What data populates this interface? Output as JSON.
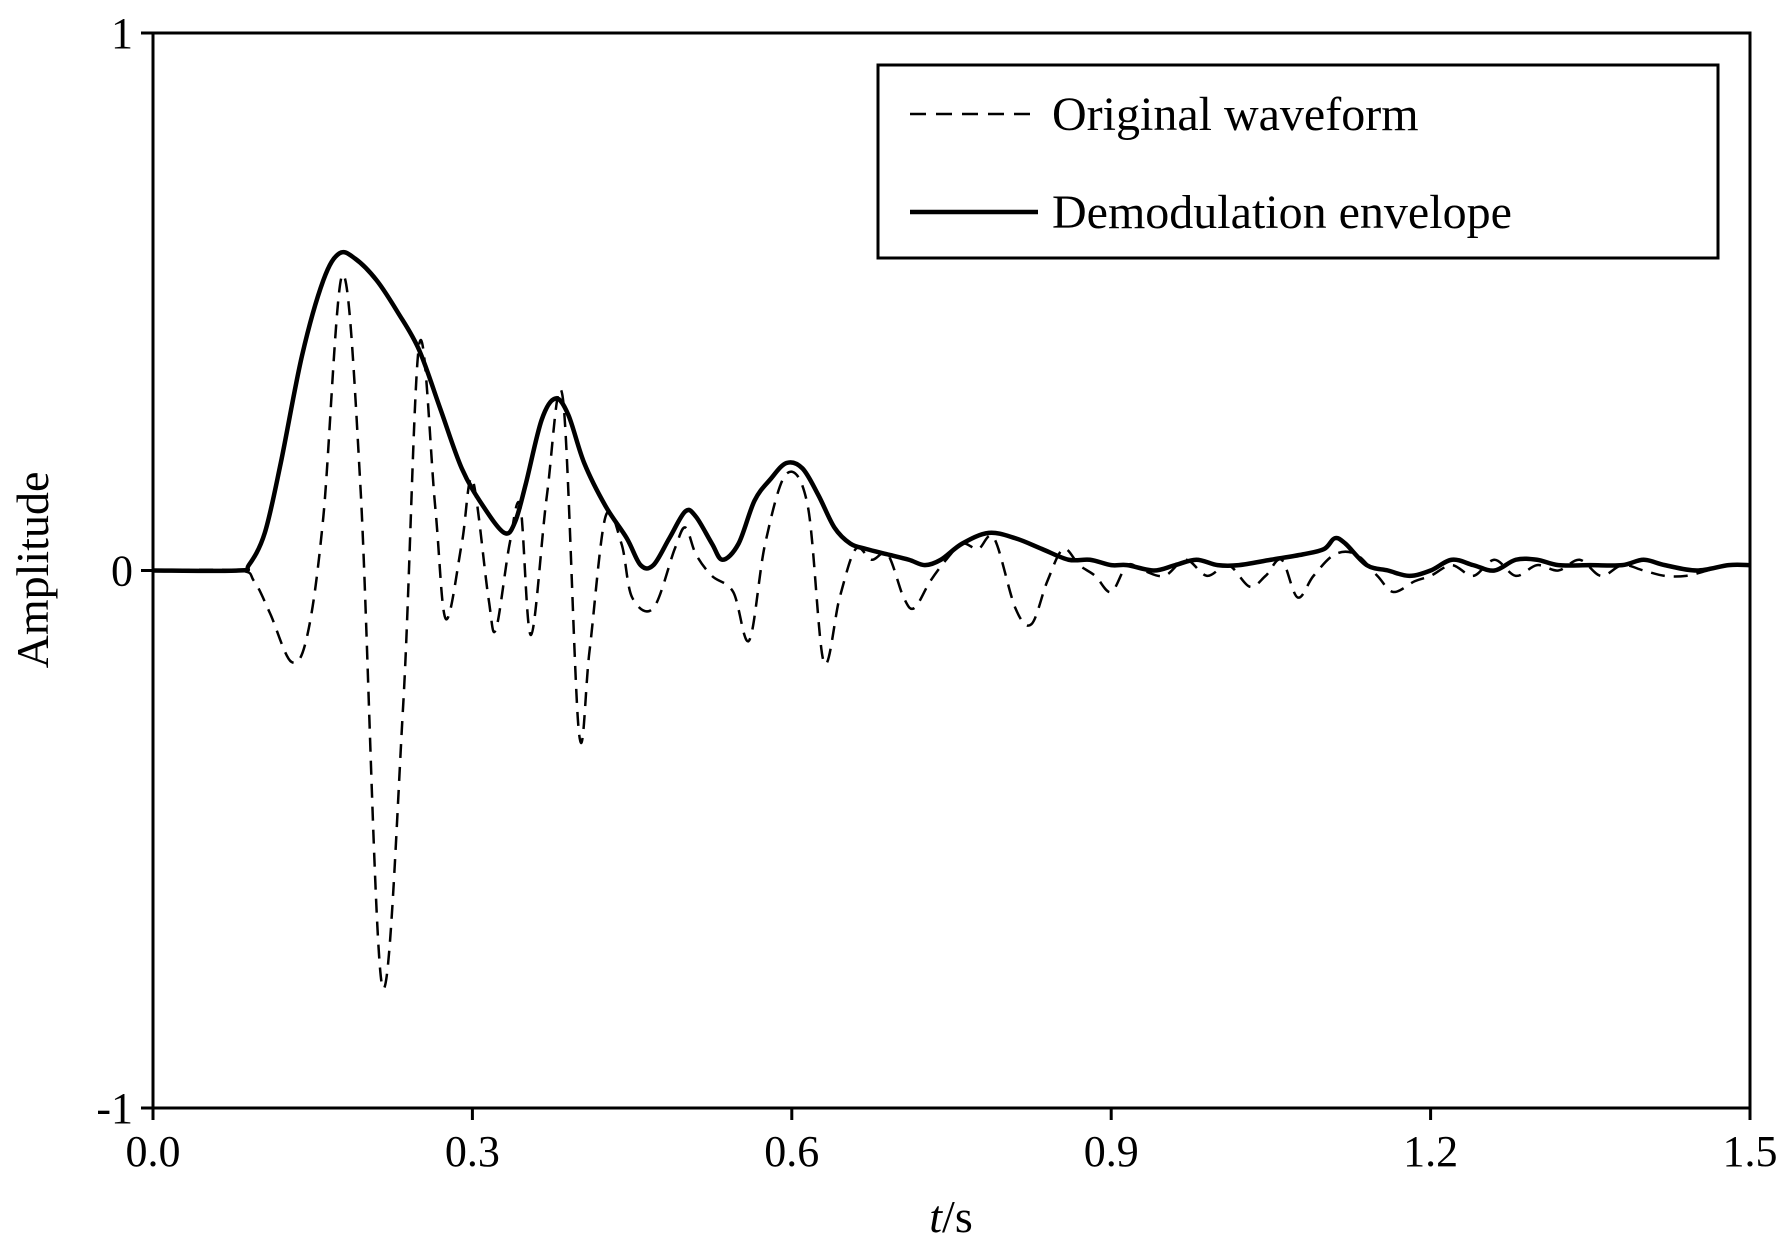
{
  "chart_data": {
    "type": "line",
    "title": "",
    "xlabel_italic": "t",
    "xlabel_unit": "/s",
    "ylabel": "Amplitude",
    "xlim": [
      0.0,
      1.5
    ],
    "ylim": [
      -1,
      1
    ],
    "x_ticks": [
      0.0,
      0.3,
      0.6,
      0.9,
      1.2,
      1.5
    ],
    "x_tick_labels": [
      "0.0",
      "0.3",
      "0.6",
      "0.9",
      "1.2",
      "1.5"
    ],
    "y_ticks": [
      -1,
      0,
      1
    ],
    "y_tick_labels": [
      "-1",
      "0",
      "1"
    ],
    "grid": false,
    "legend_position": "top-right",
    "series": [
      {
        "name": "Original waveform",
        "style": "dashed",
        "color": "#000000",
        "x": [
          0.0,
          0.08,
          0.095,
          0.11,
          0.13,
          0.145,
          0.16,
          0.178,
          0.195,
          0.215,
          0.235,
          0.25,
          0.265,
          0.275,
          0.29,
          0.3,
          0.315,
          0.322,
          0.335,
          0.345,
          0.355,
          0.37,
          0.385,
          0.4,
          0.41,
          0.425,
          0.44,
          0.45,
          0.47,
          0.49,
          0.5,
          0.51,
          0.525,
          0.545,
          0.56,
          0.575,
          0.595,
          0.615,
          0.63,
          0.645,
          0.66,
          0.675,
          0.69,
          0.705,
          0.715,
          0.73,
          0.745,
          0.76,
          0.775,
          0.79,
          0.81,
          0.825,
          0.84,
          0.855,
          0.87,
          0.885,
          0.9,
          0.915,
          0.93,
          0.95,
          0.97,
          0.99,
          1.01,
          1.03,
          1.045,
          1.06,
          1.075,
          1.09,
          1.11,
          1.13,
          1.15,
          1.165,
          1.185,
          1.2,
          1.22,
          1.24,
          1.26,
          1.28,
          1.3,
          1.32,
          1.34,
          1.36,
          1.38,
          1.4,
          1.42,
          1.44,
          1.46,
          1.48,
          1.5
        ],
        "y": [
          0.0,
          0.0,
          -0.02,
          -0.08,
          -0.17,
          -0.12,
          0.1,
          0.55,
          0.15,
          -0.77,
          -0.25,
          0.42,
          0.12,
          -0.09,
          0.05,
          0.17,
          -0.05,
          -0.11,
          0.05,
          0.12,
          -0.12,
          0.14,
          0.32,
          -0.3,
          -0.15,
          0.1,
          0.05,
          -0.05,
          -0.07,
          0.04,
          0.08,
          0.03,
          -0.01,
          -0.04,
          -0.13,
          0.05,
          0.18,
          0.12,
          -0.17,
          -0.05,
          0.04,
          0.02,
          0.03,
          -0.05,
          -0.07,
          -0.02,
          0.02,
          0.05,
          0.04,
          0.06,
          -0.07,
          -0.1,
          -0.02,
          0.04,
          0.01,
          -0.01,
          -0.04,
          0.01,
          0.0,
          -0.01,
          0.02,
          -0.01,
          0.01,
          -0.03,
          -0.01,
          0.02,
          -0.05,
          -0.01,
          0.03,
          0.03,
          -0.01,
          -0.04,
          -0.02,
          -0.01,
          0.01,
          -0.01,
          0.02,
          -0.01,
          0.01,
          0.0,
          0.02,
          -0.01,
          0.01,
          0.0,
          -0.01,
          -0.01,
          0.0,
          0.01,
          0.01
        ]
      },
      {
        "name": "Demodulation envelope",
        "style": "solid",
        "color": "#000000",
        "x": [
          0.0,
          0.08,
          0.09,
          0.105,
          0.12,
          0.14,
          0.16,
          0.175,
          0.19,
          0.21,
          0.23,
          0.25,
          0.27,
          0.29,
          0.31,
          0.33,
          0.34,
          0.35,
          0.365,
          0.378,
          0.39,
          0.405,
          0.425,
          0.445,
          0.458,
          0.47,
          0.485,
          0.5,
          0.51,
          0.525,
          0.535,
          0.55,
          0.565,
          0.58,
          0.595,
          0.61,
          0.625,
          0.64,
          0.655,
          0.67,
          0.69,
          0.71,
          0.725,
          0.74,
          0.76,
          0.785,
          0.81,
          0.835,
          0.86,
          0.88,
          0.9,
          0.915,
          0.94,
          0.96,
          0.98,
          1.0,
          1.02,
          1.05,
          1.08,
          1.1,
          1.11,
          1.12,
          1.14,
          1.16,
          1.18,
          1.2,
          1.22,
          1.24,
          1.26,
          1.28,
          1.3,
          1.32,
          1.35,
          1.38,
          1.4,
          1.42,
          1.45,
          1.48,
          1.5
        ],
        "y": [
          0.0,
          0.0,
          0.01,
          0.07,
          0.2,
          0.4,
          0.54,
          0.59,
          0.58,
          0.54,
          0.48,
          0.41,
          0.3,
          0.19,
          0.12,
          0.07,
          0.09,
          0.16,
          0.28,
          0.32,
          0.29,
          0.2,
          0.12,
          0.06,
          0.01,
          0.01,
          0.06,
          0.11,
          0.1,
          0.05,
          0.02,
          0.05,
          0.13,
          0.17,
          0.2,
          0.19,
          0.14,
          0.08,
          0.05,
          0.04,
          0.03,
          0.02,
          0.01,
          0.02,
          0.05,
          0.07,
          0.06,
          0.04,
          0.02,
          0.02,
          0.01,
          0.01,
          0.0,
          0.01,
          0.02,
          0.01,
          0.01,
          0.02,
          0.03,
          0.04,
          0.06,
          0.05,
          0.01,
          0.0,
          -0.01,
          0.0,
          0.02,
          0.01,
          0.0,
          0.02,
          0.02,
          0.01,
          0.01,
          0.01,
          0.02,
          0.01,
          0.0,
          0.01,
          0.01
        ]
      }
    ]
  }
}
